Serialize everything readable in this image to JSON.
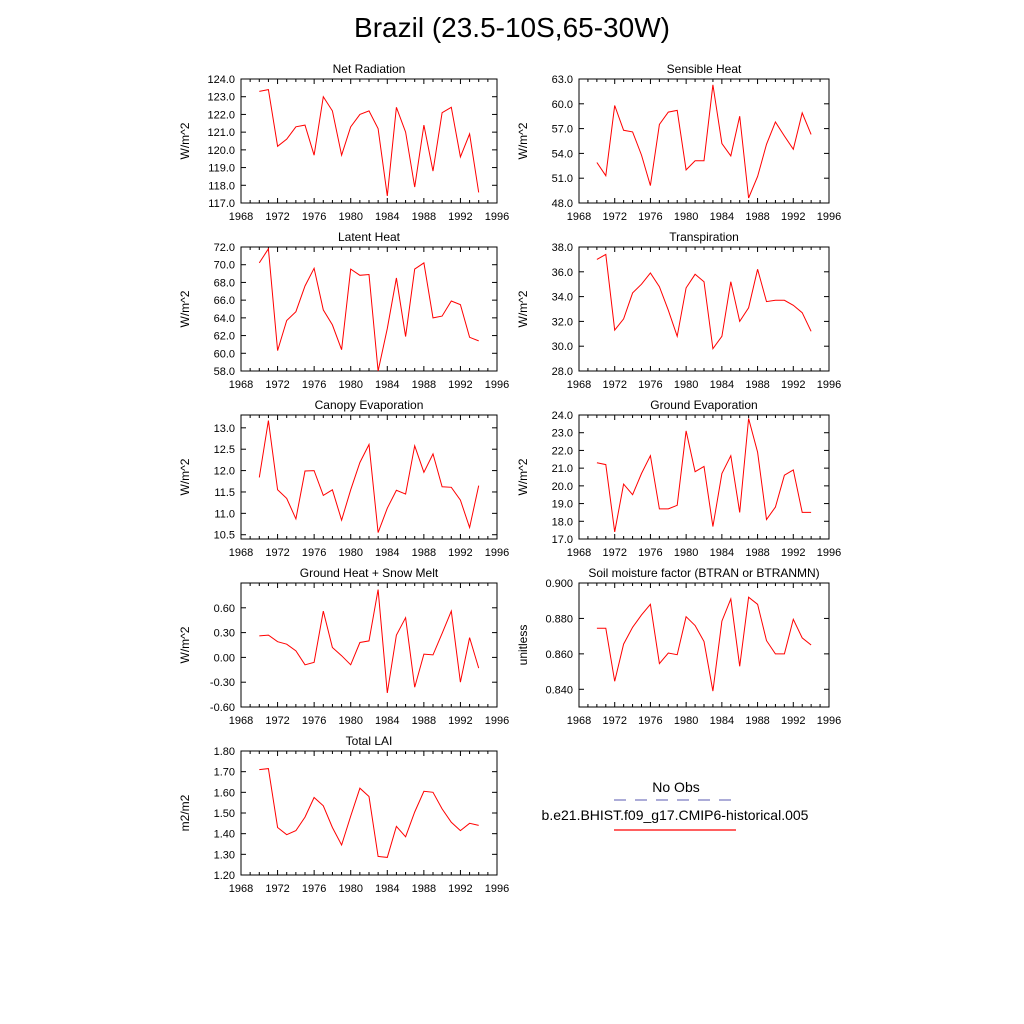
{
  "figure": {
    "title": "Brazil (23.5-10S,65-30W)",
    "line_color": "#ff0000",
    "obs_line_color": "#7b7bc0"
  },
  "legend": {
    "obs_label": "No Obs",
    "model_label": "b.e21.BHIST.f09_g17.CMIP6-historical.005"
  },
  "chart_data": [
    {
      "type": "line",
      "title": "Net Radiation",
      "ylabel": "W/m^2",
      "xlim": [
        1968,
        1996
      ],
      "ylim": [
        117.0,
        124.0
      ],
      "xticks": [
        "1968",
        "1972",
        "1976",
        "1980",
        "1984",
        "1988",
        "1992",
        "1996"
      ],
      "yticks": [
        "117.0",
        "118.0",
        "119.0",
        "120.0",
        "121.0",
        "122.0",
        "123.0",
        "124.0"
      ],
      "x": [
        1970,
        1971,
        1972,
        1973,
        1974,
        1975,
        1976,
        1977,
        1978,
        1979,
        1980,
        1981,
        1982,
        1983,
        1984,
        1985,
        1986,
        1987,
        1988,
        1989,
        1990,
        1991,
        1992,
        1993,
        1994
      ],
      "y": [
        123.3,
        123.4,
        120.2,
        120.6,
        121.3,
        121.4,
        119.7,
        123.0,
        122.2,
        119.7,
        121.3,
        122.0,
        122.2,
        121.2,
        117.4,
        122.4,
        121.0,
        117.9,
        121.4,
        118.8,
        122.1,
        122.4,
        119.6,
        120.9,
        117.6
      ]
    },
    {
      "type": "line",
      "title": "Sensible Heat",
      "ylabel": "W/m^2",
      "xlim": [
        1968,
        1996
      ],
      "ylim": [
        48.0,
        63.0
      ],
      "xticks": [
        "1968",
        "1972",
        "1976",
        "1980",
        "1984",
        "1988",
        "1992",
        "1996"
      ],
      "yticks": [
        "48.0",
        "51.0",
        "54.0",
        "57.0",
        "60.0",
        "63.0"
      ],
      "x": [
        1970,
        1971,
        1972,
        1973,
        1974,
        1975,
        1976,
        1977,
        1978,
        1979,
        1980,
        1981,
        1982,
        1983,
        1984,
        1985,
        1986,
        1987,
        1988,
        1989,
        1990,
        1991,
        1992,
        1993,
        1994
      ],
      "y": [
        52.9,
        51.3,
        59.8,
        56.8,
        56.6,
        53.8,
        50.1,
        57.5,
        59.0,
        59.2,
        52.0,
        53.1,
        53.1,
        62.3,
        55.2,
        53.7,
        58.5,
        48.6,
        51.2,
        55.1,
        57.8,
        56.1,
        54.5,
        58.9,
        56.3
      ]
    },
    {
      "type": "line",
      "title": "Latent Heat",
      "ylabel": "W/m^2",
      "xlim": [
        1968,
        1996
      ],
      "ylim": [
        58.0,
        72.0
      ],
      "xticks": [
        "1968",
        "1972",
        "1976",
        "1980",
        "1984",
        "1988",
        "1992",
        "1996"
      ],
      "yticks": [
        "58.0",
        "60.0",
        "62.0",
        "64.0",
        "66.0",
        "68.0",
        "70.0",
        "72.0"
      ],
      "x": [
        1970,
        1971,
        1972,
        1973,
        1974,
        1975,
        1976,
        1977,
        1978,
        1979,
        1980,
        1981,
        1982,
        1983,
        1984,
        1985,
        1986,
        1987,
        1988,
        1989,
        1990,
        1991,
        1992,
        1993,
        1994
      ],
      "y": [
        70.2,
        71.8,
        60.3,
        63.7,
        64.7,
        67.6,
        69.6,
        64.9,
        63.2,
        60.4,
        69.5,
        68.8,
        68.9,
        58.0,
        62.8,
        68.5,
        61.9,
        69.5,
        70.2,
        64.0,
        64.2,
        65.9,
        65.5,
        61.8,
        61.4
      ]
    },
    {
      "type": "line",
      "title": "Transpiration",
      "ylabel": "W/m^2",
      "xlim": [
        1968,
        1996
      ],
      "ylim": [
        28.0,
        38.0
      ],
      "xticks": [
        "1968",
        "1972",
        "1976",
        "1980",
        "1984",
        "1988",
        "1992",
        "1996"
      ],
      "yticks": [
        "28.0",
        "30.0",
        "32.0",
        "34.0",
        "36.0",
        "38.0"
      ],
      "x": [
        1970,
        1971,
        1972,
        1973,
        1974,
        1975,
        1976,
        1977,
        1978,
        1979,
        1980,
        1981,
        1982,
        1983,
        1984,
        1985,
        1986,
        1987,
        1988,
        1989,
        1990,
        1991,
        1992,
        1993,
        1994
      ],
      "y": [
        37.0,
        37.4,
        31.3,
        32.2,
        34.3,
        35.0,
        35.9,
        34.8,
        32.9,
        30.8,
        34.7,
        35.8,
        35.2,
        29.8,
        30.8,
        35.2,
        32.0,
        33.1,
        36.2,
        33.6,
        33.7,
        33.7,
        33.3,
        32.7,
        31.2
      ]
    },
    {
      "type": "line",
      "title": "Canopy Evaporation",
      "ylabel": "W/m^2",
      "xlim": [
        1968,
        1996
      ],
      "ylim": [
        10.4,
        13.3
      ],
      "xticks": [
        "1968",
        "1972",
        "1976",
        "1980",
        "1984",
        "1988",
        "1992",
        "1996"
      ],
      "yticks": [
        "10.5",
        "11.0",
        "11.5",
        "12.0",
        "12.5",
        "13.0"
      ],
      "x": [
        1970,
        1971,
        1972,
        1973,
        1974,
        1975,
        1976,
        1977,
        1978,
        1979,
        1980,
        1981,
        1982,
        1983,
        1984,
        1985,
        1986,
        1987,
        1988,
        1989,
        1990,
        1991,
        1992,
        1993,
        1994
      ],
      "y": [
        11.84,
        13.17,
        11.55,
        11.35,
        10.87,
        11.99,
        12.0,
        11.42,
        11.55,
        10.84,
        11.55,
        12.19,
        12.61,
        10.55,
        11.12,
        11.54,
        11.45,
        12.58,
        11.96,
        12.39,
        11.62,
        11.61,
        11.31,
        10.67,
        11.65
      ]
    },
    {
      "type": "line",
      "title": "Ground Evaporation",
      "ylabel": "W/m^2",
      "xlim": [
        1968,
        1996
      ],
      "ylim": [
        17.0,
        24.0
      ],
      "xticks": [
        "1968",
        "1972",
        "1976",
        "1980",
        "1984",
        "1988",
        "1992",
        "1996"
      ],
      "yticks": [
        "17.0",
        "18.0",
        "19.0",
        "20.0",
        "21.0",
        "22.0",
        "23.0",
        "24.0"
      ],
      "x": [
        1970,
        1971,
        1972,
        1973,
        1974,
        1975,
        1976,
        1977,
        1978,
        1979,
        1980,
        1981,
        1982,
        1983,
        1984,
        1985,
        1986,
        1987,
        1988,
        1989,
        1990,
        1991,
        1992,
        1993,
        1994
      ],
      "y": [
        21.3,
        21.2,
        17.4,
        20.1,
        19.5,
        20.7,
        21.7,
        18.7,
        18.7,
        18.9,
        23.1,
        20.8,
        21.1,
        17.7,
        20.7,
        21.7,
        18.5,
        23.8,
        21.9,
        18.1,
        18.8,
        20.6,
        20.9,
        18.5,
        18.5
      ]
    },
    {
      "type": "line",
      "title": "Ground Heat + Snow Melt",
      "ylabel": "W/m^2",
      "xlim": [
        1968,
        1996
      ],
      "ylim": [
        -0.6,
        0.9
      ],
      "xticks": [
        "1968",
        "1972",
        "1976",
        "1980",
        "1984",
        "1988",
        "1992",
        "1996"
      ],
      "yticks": [
        "-0.60",
        "-0.30",
        "0.00",
        "0.30",
        "0.60"
      ],
      "x": [
        1970,
        1971,
        1972,
        1973,
        1974,
        1975,
        1976,
        1977,
        1978,
        1979,
        1980,
        1981,
        1982,
        1983,
        1984,
        1985,
        1986,
        1987,
        1988,
        1989,
        1990,
        1991,
        1992,
        1993,
        1994
      ],
      "y": [
        0.26,
        0.27,
        0.19,
        0.16,
        0.08,
        -0.09,
        -0.06,
        0.56,
        0.12,
        0.02,
        -0.09,
        0.18,
        0.2,
        0.82,
        -0.43,
        0.27,
        0.48,
        -0.36,
        0.04,
        0.03,
        0.29,
        0.56,
        -0.3,
        0.24,
        -0.13
      ]
    },
    {
      "type": "line",
      "title": "Soil moisture factor (BTRAN or BTRANMN)",
      "ylabel": "unitless",
      "xlim": [
        1968,
        1996
      ],
      "ylim": [
        0.83,
        0.9
      ],
      "xticks": [
        "1968",
        "1972",
        "1976",
        "1980",
        "1984",
        "1988",
        "1992",
        "1996"
      ],
      "yticks": [
        "0.840",
        "0.860",
        "0.880",
        "0.900"
      ],
      "x": [
        1970,
        1971,
        1972,
        1973,
        1974,
        1975,
        1976,
        1977,
        1978,
        1979,
        1980,
        1981,
        1982,
        1983,
        1984,
        1985,
        1986,
        1987,
        1988,
        1989,
        1990,
        1991,
        1992,
        1993,
        1994
      ],
      "y": [
        0.8745,
        0.8745,
        0.8445,
        0.8655,
        0.875,
        0.882,
        0.888,
        0.8545,
        0.8605,
        0.8595,
        0.881,
        0.876,
        0.867,
        0.839,
        0.8785,
        0.891,
        0.853,
        0.892,
        0.888,
        0.8675,
        0.86,
        0.86,
        0.8795,
        0.869,
        0.865
      ]
    },
    {
      "type": "line",
      "title": "Total LAI",
      "ylabel": "m2/m2",
      "xlim": [
        1968,
        1996
      ],
      "ylim": [
        1.2,
        1.8
      ],
      "xticks": [
        "1968",
        "1972",
        "1976",
        "1980",
        "1984",
        "1988",
        "1992",
        "1996"
      ],
      "yticks": [
        "1.20",
        "1.30",
        "1.40",
        "1.50",
        "1.60",
        "1.70",
        "1.80"
      ],
      "x": [
        1970,
        1971,
        1972,
        1973,
        1974,
        1975,
        1976,
        1977,
        1978,
        1979,
        1980,
        1981,
        1982,
        1983,
        1984,
        1985,
        1986,
        1987,
        1988,
        1989,
        1990,
        1991,
        1992,
        1993,
        1994
      ],
      "y": [
        1.71,
        1.715,
        1.43,
        1.395,
        1.415,
        1.48,
        1.575,
        1.535,
        1.43,
        1.345,
        1.485,
        1.62,
        1.58,
        1.29,
        1.285,
        1.435,
        1.385,
        1.505,
        1.605,
        1.6,
        1.52,
        1.455,
        1.415,
        1.45,
        1.44
      ]
    }
  ]
}
